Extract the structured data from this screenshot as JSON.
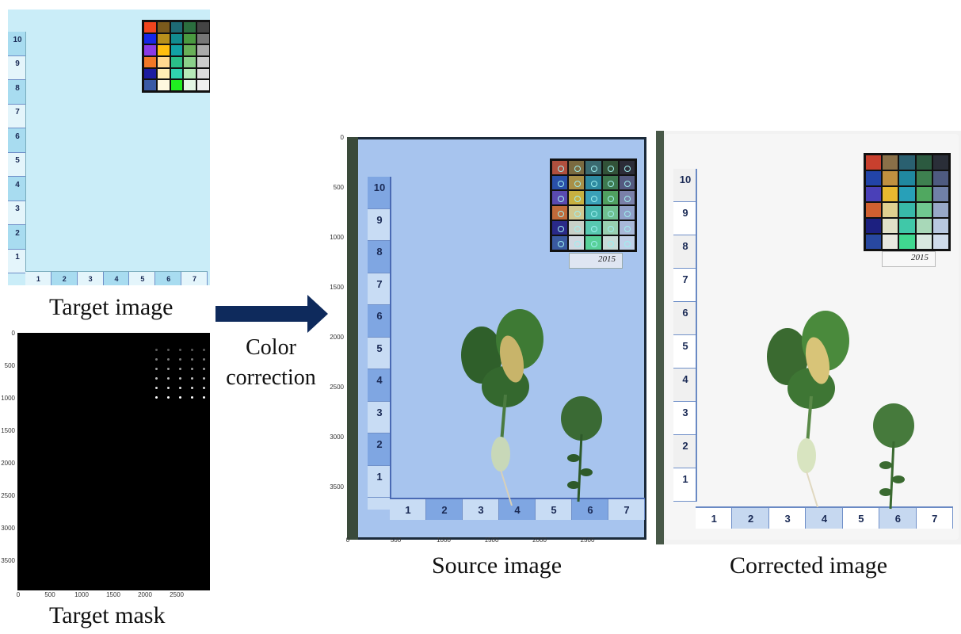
{
  "labels": {
    "target_image": "Target image",
    "target_mask": "Target mask",
    "color_correction": "Color\ncorrection",
    "source_image": "Source image",
    "corrected_image": "Corrected image",
    "year_label": "2015"
  },
  "axes": {
    "source_y_ticks": [
      "0",
      "500",
      "1000",
      "1500",
      "2000",
      "2500",
      "3000",
      "3500"
    ],
    "source_x_ticks": [
      "0",
      "500",
      "1000",
      "1500",
      "2000",
      "2500"
    ],
    "mask_y_ticks": [
      "0",
      "500",
      "1000",
      "1500",
      "2000",
      "2500",
      "3000",
      "3500"
    ],
    "mask_x_ticks": [
      "0",
      "500",
      "1000",
      "1500",
      "2000",
      "2500"
    ]
  },
  "ruler": {
    "vertical_numbers": [
      "10",
      "9",
      "8",
      "7",
      "6",
      "5",
      "4",
      "3",
      "2",
      "1"
    ],
    "horizontal_numbers": [
      "1",
      "2",
      "3",
      "4",
      "5",
      "6",
      "7"
    ]
  },
  "colors": {
    "arrow": "#0e2a5c",
    "target_bg": "#c9ecf7",
    "source_bg": "#a9c6ef",
    "corrected_bg": "#f3f3f3",
    "target_checker": [
      [
        "#f0451e",
        "#7a5a1c",
        "#1e6a74",
        "#2b6e3e",
        "#444444"
      ],
      [
        "#1626e6",
        "#b8901c",
        "#128c90",
        "#4a9a40",
        "#777777"
      ],
      [
        "#8a3ae6",
        "#ffbe10",
        "#12a2a6",
        "#68b058",
        "#aaaaaa"
      ],
      [
        "#f07826",
        "#ffd890",
        "#2abe88",
        "#8ad08a",
        "#cccccc"
      ],
      [
        "#1c1ca0",
        "#ffeeb6",
        "#30d4b0",
        "#b6eab8",
        "#dddddd"
      ],
      [
        "#3a5aa6",
        "#fff8e0",
        "#20ee20",
        "#e4f6e4",
        "#f0f0f0"
      ]
    ],
    "source_checker": [
      [
        "#b0503e",
        "#7a6a40",
        "#3a6a70",
        "#325238",
        "#2c2c38"
      ],
      [
        "#2a50a8",
        "#a89048",
        "#2e8aa0",
        "#3e7a50",
        "#545a80"
      ],
      [
        "#5a4ab0",
        "#c8b040",
        "#3aa0b8",
        "#50a060",
        "#7a80a8"
      ],
      [
        "#c06a3a",
        "#d0c890",
        "#48b8b0",
        "#70c090",
        "#90a0c8"
      ],
      [
        "#2a2a88",
        "#c8d0c8",
        "#58c8b0",
        "#98d0b0",
        "#a8b8d8"
      ],
      [
        "#3a5aa0",
        "#d0d8e0",
        "#58d098",
        "#c8dcd8",
        "#c0d0e8"
      ]
    ],
    "corrected_checker": [
      [
        "#c8402e",
        "#8a7048",
        "#2a6070",
        "#2c5a40",
        "#2a2e38"
      ],
      [
        "#2244a8",
        "#c09040",
        "#2088a0",
        "#3e8050",
        "#4e5a80"
      ],
      [
        "#4a40b8",
        "#e8b830",
        "#28a0b8",
        "#50a860",
        "#7080a8"
      ],
      [
        "#d06030",
        "#e0d090",
        "#38b8a8",
        "#70c890",
        "#98a8c8"
      ],
      [
        "#1c2080",
        "#e0e0c8",
        "#40c8a8",
        "#a8d8b8",
        "#b8c8e0"
      ],
      [
        "#2848a0",
        "#e8e8e0",
        "#40d890",
        "#d8e8e0",
        "#d0dceb"
      ]
    ]
  }
}
